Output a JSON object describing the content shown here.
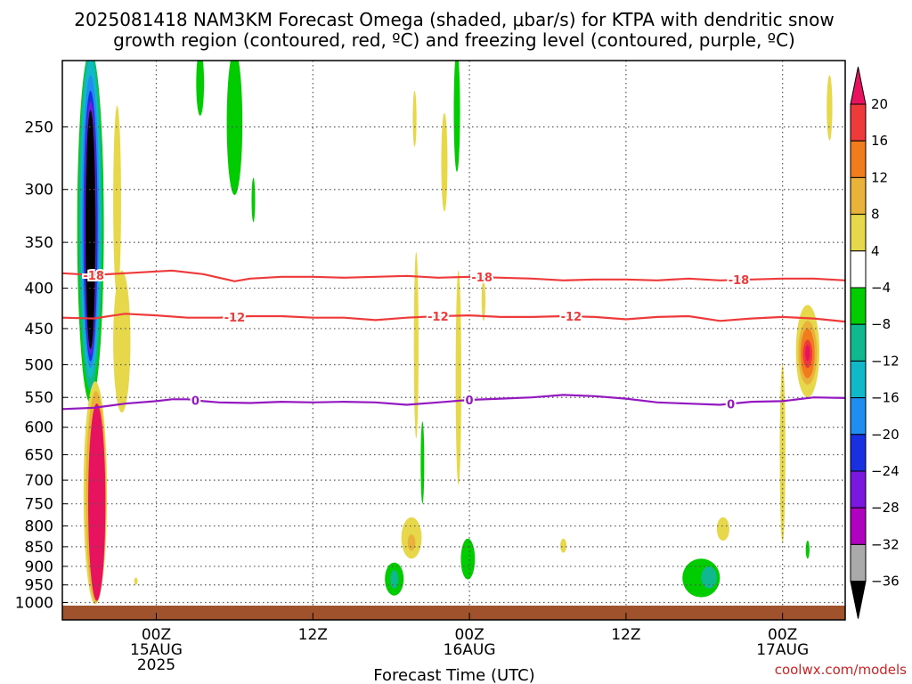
{
  "chart_data": {
    "type": "heatmap",
    "title_line1": "2025081418 NAM3KM Forecast Omega (shaded, μbar/s) for KTPA with dendritic snow",
    "title_line2": "growth region (contoured, red, ºC) and freezing level (contoured, purple, ºC)",
    "xlabel": "Forecast Time (UTC)",
    "credit": "coolwx.com/models",
    "x_range_hours": [
      -6,
      44
    ],
    "pressure_range_hpa": [
      1010,
      200
    ],
    "x_ticks": [
      {
        "hour": 0,
        "lines": [
          "00Z",
          "15AUG",
          "2025"
        ]
      },
      {
        "hour": 10,
        "lines": [
          "12Z"
        ]
      },
      {
        "hour": 20,
        "lines": [
          "00Z",
          "16AUG"
        ]
      },
      {
        "hour": 30,
        "lines": [
          "12Z"
        ]
      },
      {
        "hour": 40,
        "lines": [
          "00Z",
          "17AUG"
        ]
      }
    ],
    "y_ticks": [
      250,
      300,
      350,
      400,
      450,
      500,
      550,
      600,
      650,
      700,
      750,
      800,
      850,
      900,
      950,
      1000
    ],
    "colorbar": {
      "levels": [
        20,
        16,
        12,
        8,
        4,
        -4,
        -8,
        -12,
        -16,
        -20,
        -24,
        -28,
        -32,
        -36
      ],
      "colors": [
        "#e8135e",
        "#ee3a3a",
        "#f07c1e",
        "#e9b23a",
        "#e6d84a",
        "#ffffff",
        "#00cc00",
        "#10b890",
        "#10b8c8",
        "#1f8ef0",
        "#1830e0",
        "#7a18e0",
        "#b000c0",
        "#aaaaaa",
        "#000000"
      ]
    },
    "contours": [
      {
        "name": "-18",
        "color": "#ee3a3a",
        "label_hours": [
          -4,
          20.8,
          37.2
        ],
        "points": [
          [
            -6,
            383
          ],
          [
            -4,
            385
          ],
          [
            -2,
            383
          ],
          [
            0,
            381
          ],
          [
            1,
            380
          ],
          [
            2,
            382
          ],
          [
            3,
            384
          ],
          [
            4,
            388
          ],
          [
            5,
            392
          ],
          [
            6,
            389
          ],
          [
            8,
            387
          ],
          [
            10,
            387
          ],
          [
            12,
            388
          ],
          [
            14,
            387
          ],
          [
            16,
            386
          ],
          [
            18,
            388
          ],
          [
            20,
            387
          ],
          [
            22,
            388
          ],
          [
            24,
            389
          ],
          [
            26,
            391
          ],
          [
            28,
            390
          ],
          [
            30,
            390
          ],
          [
            32,
            391
          ],
          [
            34,
            389
          ],
          [
            36,
            391
          ],
          [
            38,
            390
          ],
          [
            40,
            389
          ],
          [
            42,
            389
          ],
          [
            44,
            391
          ]
        ]
      },
      {
        "name": "-12",
        "color": "#ee3a3a",
        "label_hours": [
          5,
          18,
          26.5
        ],
        "points": [
          [
            -6,
            436
          ],
          [
            -4,
            437
          ],
          [
            -2,
            431
          ],
          [
            0,
            433
          ],
          [
            2,
            436
          ],
          [
            4,
            436
          ],
          [
            6,
            434
          ],
          [
            8,
            434
          ],
          [
            10,
            436
          ],
          [
            12,
            436
          ],
          [
            14,
            439
          ],
          [
            16,
            436
          ],
          [
            18,
            434
          ],
          [
            20,
            433
          ],
          [
            22,
            435
          ],
          [
            24,
            435
          ],
          [
            26,
            434
          ],
          [
            28,
            435
          ],
          [
            30,
            438
          ],
          [
            32,
            435
          ],
          [
            34,
            434
          ],
          [
            36,
            440
          ],
          [
            38,
            437
          ],
          [
            40,
            435
          ],
          [
            42,
            437
          ],
          [
            44,
            441
          ]
        ]
      },
      {
        "name": "0",
        "color": "#9418c0",
        "label_hours": [
          2.5,
          20,
          36.7
        ],
        "points": [
          [
            -6,
            569
          ],
          [
            -4,
            567
          ],
          [
            -2,
            560
          ],
          [
            0,
            556
          ],
          [
            1,
            553
          ],
          [
            2,
            553
          ],
          [
            3,
            556
          ],
          [
            4,
            558
          ],
          [
            6,
            559
          ],
          [
            8,
            557
          ],
          [
            10,
            558
          ],
          [
            12,
            557
          ],
          [
            14,
            558
          ],
          [
            16,
            562
          ],
          [
            18,
            558
          ],
          [
            20,
            554
          ],
          [
            22,
            552
          ],
          [
            24,
            550
          ],
          [
            26,
            546
          ],
          [
            28,
            548
          ],
          [
            30,
            552
          ],
          [
            32,
            558
          ],
          [
            34,
            560
          ],
          [
            36,
            562
          ],
          [
            38,
            557
          ],
          [
            40,
            556
          ],
          [
            42,
            550
          ],
          [
            44,
            551
          ]
        ]
      }
    ],
    "features": [
      {
        "t": 0,
        "p": 0,
        "w": 0,
        "h": 0,
        "v": 0
      }
    ]
  }
}
